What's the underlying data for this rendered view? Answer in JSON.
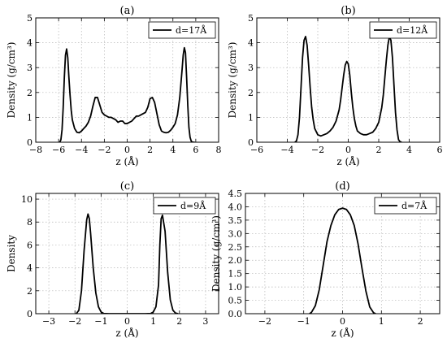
{
  "chart_data": [
    {
      "type": "line",
      "title": "(a)",
      "xlabel": "z (Å)",
      "ylabel": "Density (g/cm³)",
      "xlim": [
        -8,
        8
      ],
      "ylim": [
        0,
        5
      ],
      "xticks": [
        -8,
        -6,
        -4,
        -2,
        0,
        2,
        4,
        6,
        8
      ],
      "yticks": [
        0,
        1,
        2,
        3,
        4,
        5
      ],
      "grid": true,
      "legend_position": "top-right",
      "series": [
        {
          "name": "d=17Å",
          "color": "#000000",
          "x": [
            -5.9,
            -5.8,
            -5.7,
            -5.6,
            -5.5,
            -5.4,
            -5.3,
            -5.2,
            -5.1,
            -5.0,
            -4.9,
            -4.8,
            -4.6,
            -4.4,
            -4.2,
            -4.0,
            -3.8,
            -3.6,
            -3.4,
            -3.2,
            -3.0,
            -2.8,
            -2.6,
            -2.4,
            -2.2,
            -2.0,
            -1.8,
            -1.6,
            -1.4,
            -1.2,
            -1.0,
            -0.8,
            -0.6,
            -0.4,
            -0.2,
            0.0,
            0.2,
            0.4,
            0.6,
            0.8,
            1.0,
            1.2,
            1.4,
            1.6,
            1.8,
            2.0,
            2.2,
            2.4,
            2.6,
            2.8,
            3.0,
            3.2,
            3.4,
            3.6,
            3.8,
            4.0,
            4.2,
            4.4,
            4.6,
            4.8,
            4.9,
            5.0,
            5.1,
            5.2,
            5.3,
            5.4,
            5.5,
            5.6,
            5.7,
            5.8,
            5.9
          ],
          "y": [
            0.0,
            0.1,
            0.5,
            1.4,
            2.6,
            3.5,
            3.75,
            3.4,
            2.6,
            1.9,
            1.3,
            0.9,
            0.55,
            0.4,
            0.38,
            0.45,
            0.55,
            0.65,
            0.8,
            1.05,
            1.45,
            1.8,
            1.8,
            1.5,
            1.2,
            1.1,
            1.05,
            1.0,
            1.0,
            0.95,
            0.9,
            0.8,
            0.85,
            0.85,
            0.75,
            0.75,
            0.8,
            0.85,
            0.95,
            1.05,
            1.05,
            1.1,
            1.15,
            1.2,
            1.4,
            1.75,
            1.8,
            1.6,
            1.15,
            0.7,
            0.45,
            0.4,
            0.38,
            0.4,
            0.48,
            0.6,
            0.75,
            1.1,
            1.8,
            2.9,
            3.5,
            3.8,
            3.6,
            2.6,
            1.5,
            0.6,
            0.2,
            0.05,
            0.0,
            0.0,
            0.0
          ]
        }
      ]
    },
    {
      "type": "line",
      "title": "(b)",
      "xlabel": "z (Å)",
      "ylabel": "Density (g/cm³)",
      "xlim": [
        -6,
        6
      ],
      "ylim": [
        0,
        5
      ],
      "xticks": [
        -6,
        -4,
        -2,
        0,
        2,
        4,
        6
      ],
      "yticks": [
        0,
        1,
        2,
        3,
        4,
        5
      ],
      "grid": true,
      "legend_position": "top-right",
      "series": [
        {
          "name": "d=12Å",
          "color": "#000000",
          "x": [
            -3.5,
            -3.4,
            -3.3,
            -3.2,
            -3.1,
            -3.0,
            -2.9,
            -2.8,
            -2.7,
            -2.6,
            -2.5,
            -2.4,
            -2.3,
            -2.2,
            -2.0,
            -1.8,
            -1.6,
            -1.4,
            -1.2,
            -1.0,
            -0.8,
            -0.6,
            -0.5,
            -0.4,
            -0.3,
            -0.2,
            -0.1,
            0.0,
            0.1,
            0.2,
            0.3,
            0.4,
            0.5,
            0.6,
            0.8,
            1.0,
            1.2,
            1.4,
            1.6,
            1.8,
            2.0,
            2.2,
            2.3,
            2.4,
            2.5,
            2.6,
            2.7,
            2.8,
            2.9,
            3.0,
            3.1,
            3.2,
            3.3,
            3.4,
            3.5
          ],
          "y": [
            0.0,
            0.05,
            0.3,
            1.0,
            2.2,
            3.4,
            4.1,
            4.25,
            3.9,
            3.1,
            2.2,
            1.4,
            0.9,
            0.55,
            0.3,
            0.25,
            0.3,
            0.35,
            0.45,
            0.6,
            0.85,
            1.3,
            1.7,
            2.2,
            2.7,
            3.1,
            3.25,
            3.15,
            2.7,
            2.0,
            1.4,
            0.95,
            0.65,
            0.45,
            0.35,
            0.3,
            0.3,
            0.35,
            0.4,
            0.55,
            0.8,
            1.4,
            1.9,
            2.6,
            3.3,
            3.9,
            4.25,
            4.1,
            3.4,
            2.3,
            1.2,
            0.5,
            0.1,
            0.02,
            0.0
          ]
        }
      ]
    },
    {
      "type": "line",
      "title": "(c)",
      "xlabel": "z (Å)",
      "ylabel": "Density",
      "xlim": [
        -3.5,
        3.5
      ],
      "ylim": [
        0,
        10.5
      ],
      "xticks": [
        -3,
        -2,
        -1,
        0,
        1,
        2,
        3
      ],
      "yticks": [
        0,
        2,
        4,
        6,
        8,
        10
      ],
      "grid": true,
      "legend_position": "top-right",
      "series": [
        {
          "name": "d=9Å",
          "color": "#000000",
          "x": [
            -1.95,
            -1.85,
            -1.75,
            -1.65,
            -1.55,
            -1.5,
            -1.45,
            -1.4,
            -1.3,
            -1.2,
            -1.1,
            -1.0,
            -0.9,
            -0.7,
            -0.5,
            -0.2,
            0.0,
            0.2,
            0.5,
            0.7,
            0.9,
            1.0,
            1.1,
            1.2,
            1.25,
            1.3,
            1.35,
            1.45,
            1.55,
            1.65,
            1.75,
            1.85,
            1.95
          ],
          "y": [
            0.0,
            0.3,
            2.0,
            5.5,
            8.2,
            8.7,
            8.3,
            7.0,
            4.0,
            1.8,
            0.6,
            0.15,
            0.02,
            0.0,
            0.0,
            0.0,
            0.0,
            0.0,
            0.0,
            0.0,
            0.02,
            0.15,
            0.6,
            2.5,
            6.0,
            8.3,
            8.6,
            7.2,
            3.6,
            1.2,
            0.3,
            0.05,
            0.0
          ]
        }
      ]
    },
    {
      "type": "line",
      "title": "(d)",
      "xlabel": "z (Å)",
      "ylabel": "Density (g/cm³)",
      "xlim": [
        -2.5,
        2.5
      ],
      "ylim": [
        0,
        4.5
      ],
      "xticks": [
        -2,
        -1,
        0,
        1,
        2
      ],
      "yticks": [
        0.0,
        0.5,
        1.0,
        1.5,
        2.0,
        2.5,
        3.0,
        3.5,
        4.0,
        4.5
      ],
      "grid": true,
      "legend_position": "top-right",
      "series": [
        {
          "name": "d=7Å",
          "color": "#000000",
          "x": [
            -0.85,
            -0.8,
            -0.7,
            -0.6,
            -0.5,
            -0.4,
            -0.3,
            -0.2,
            -0.1,
            0.0,
            0.1,
            0.2,
            0.3,
            0.4,
            0.5,
            0.6,
            0.7,
            0.8,
            0.85
          ],
          "y": [
            0.0,
            0.05,
            0.3,
            0.9,
            1.8,
            2.7,
            3.3,
            3.7,
            3.9,
            3.95,
            3.9,
            3.7,
            3.3,
            2.6,
            1.7,
            0.85,
            0.25,
            0.03,
            0.0
          ]
        }
      ]
    }
  ]
}
